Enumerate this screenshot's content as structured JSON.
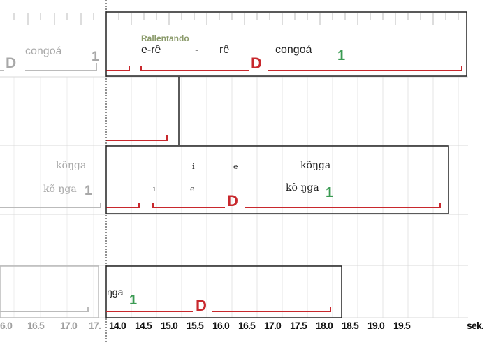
{
  "row1": {
    "left_marker": "D",
    "left_word": "congoá",
    "left_num": "1",
    "tempo": "Rallentando",
    "syllable_1": "e-rê",
    "dash": "-",
    "syllable_2": "rê",
    "right_marker": "D",
    "right_word": "congoá",
    "right_num": "1"
  },
  "row3": {
    "left_top": "kõŋga",
    "left_bottom": "kõ ŋga",
    "left_num": "1",
    "top_i": "i",
    "top_e": "e",
    "top_word": "kõŋga",
    "bot_i": "i",
    "bot_e": "e",
    "bot_word": "kõ ŋga",
    "bot_num": "1",
    "marker": "D"
  },
  "row5": {
    "word": "ŋga",
    "num": "1",
    "marker": "D"
  },
  "axis": {
    "left_ticks": [
      "6.0",
      "16.5",
      "17.0",
      "17."
    ],
    "right_ticks": [
      "14.0",
      "14.5",
      "15.0",
      "15.5",
      "16.0",
      "16.5",
      "17.0",
      "17.5",
      "18.0",
      "18.5",
      "19.0",
      "19.5"
    ],
    "unit": "sek."
  }
}
